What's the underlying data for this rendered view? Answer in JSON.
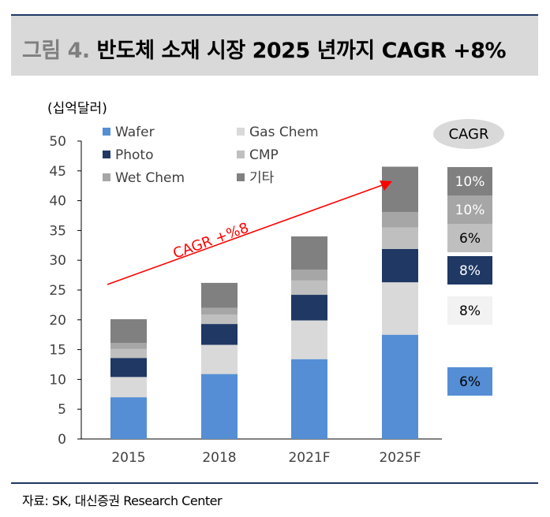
{
  "header": {
    "figure_label": "그림 4.",
    "title": "반도체 소재 시장 2025 년까지 CAGR +8%"
  },
  "source": "자료: SK, 대신증권 Research Center",
  "colors": {
    "wafer": "#558ed5",
    "gas_chem": "#d9d9d9",
    "photo": "#1f3864",
    "cmp": "#bfbfbf",
    "wet_chem": "#a6a6a6",
    "other": "#808080",
    "cagr_arrow": "#ff0000"
  },
  "chart_data": {
    "type": "bar",
    "stacked": true,
    "unit_label": "(십억달러)",
    "categories": [
      "2015",
      "2018",
      "2021F",
      "2025F"
    ],
    "ylim": [
      0,
      50
    ],
    "yticks": [
      0,
      5,
      10,
      15,
      20,
      25,
      30,
      35,
      40,
      45,
      50
    ],
    "grid": false,
    "legend_position": "top-left",
    "series": [
      {
        "name": "Wafer",
        "key": "wafer",
        "values": [
          7.0,
          10.9,
          13.4,
          17.5
        ]
      },
      {
        "name": "Gas Chem",
        "key": "gas_chem",
        "values": [
          3.4,
          4.9,
          6.5,
          8.8
        ]
      },
      {
        "name": "Photo",
        "key": "photo",
        "values": [
          3.2,
          3.5,
          4.3,
          5.6
        ]
      },
      {
        "name": "CMP",
        "key": "cmp",
        "values": [
          1.5,
          1.6,
          2.4,
          3.6
        ]
      },
      {
        "name": "Wet Chem",
        "key": "wet_chem",
        "values": [
          1.0,
          1.1,
          1.8,
          2.6
        ]
      },
      {
        "name": "기타",
        "key": "other",
        "values": [
          4.0,
          4.2,
          5.6,
          7.6
        ]
      }
    ],
    "legend_order": [
      "wafer",
      "gas_chem",
      "photo",
      "cmp",
      "wet_chem",
      "other"
    ],
    "arrow_label": "CAGR +%8",
    "cagr_title": "CAGR",
    "cagr_boxes": [
      {
        "series": "other",
        "label": "10%"
      },
      {
        "series": "wet_chem",
        "label": "10%"
      },
      {
        "series": "cmp",
        "label": "6%"
      },
      {
        "series": "photo",
        "label": "8%"
      },
      {
        "series": "gas_chem",
        "label": "8%"
      },
      {
        "series": "wafer",
        "label": "6%"
      }
    ]
  }
}
